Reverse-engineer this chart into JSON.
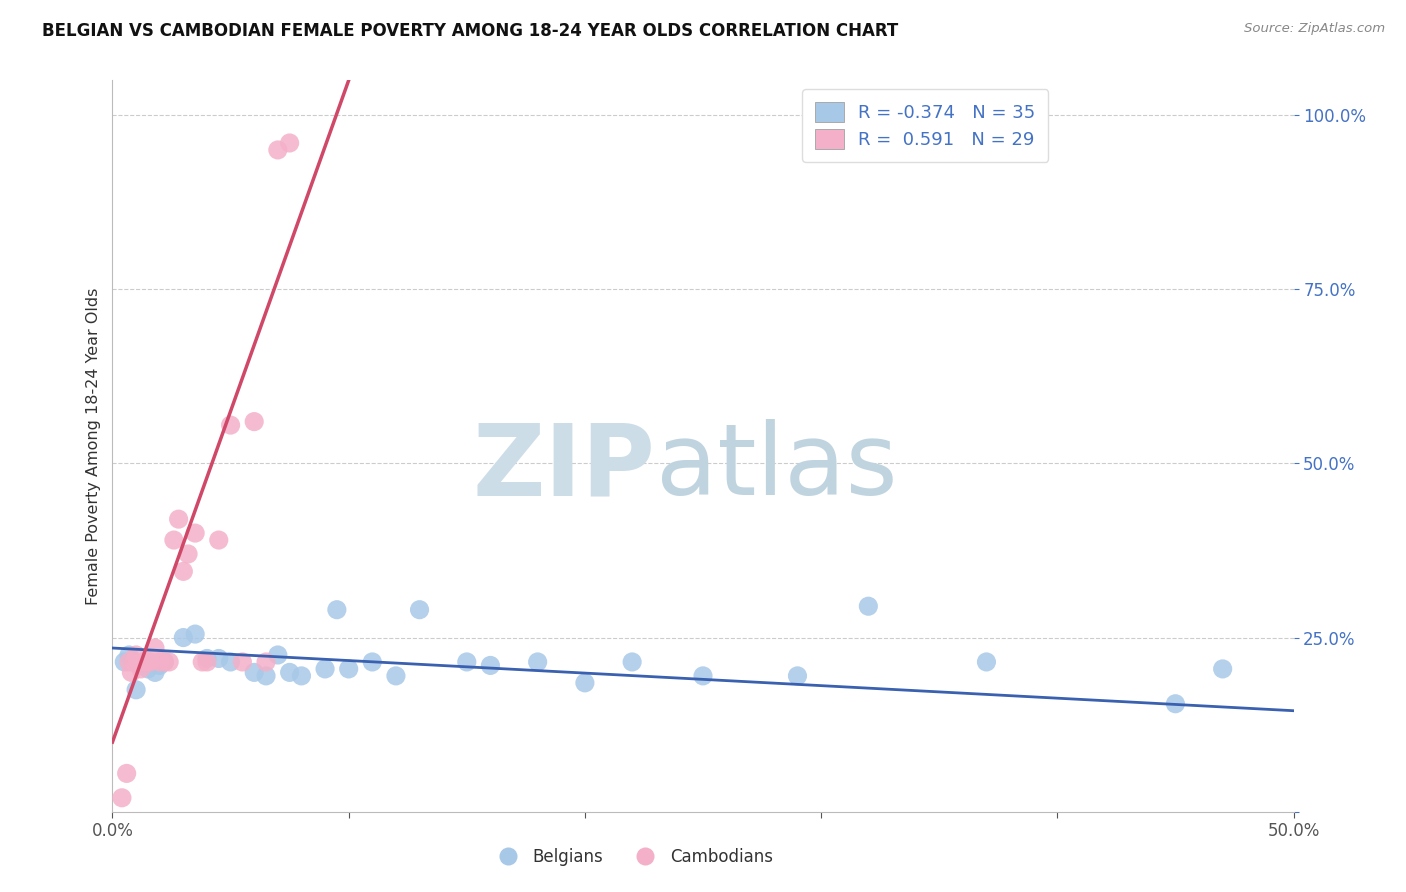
{
  "title": "BELGIAN VS CAMBODIAN FEMALE POVERTY AMONG 18-24 YEAR OLDS CORRELATION CHART",
  "source": "Source: ZipAtlas.com",
  "ylabel": "Female Poverty Among 18-24 Year Olds",
  "xlim": [
    0.0,
    0.5
  ],
  "ylim": [
    0.0,
    1.05
  ],
  "xticks": [
    0.0,
    0.1,
    0.2,
    0.3,
    0.4,
    0.5
  ],
  "xtick_labels": [
    "0.0%",
    "",
    "",
    "",
    "",
    "50.0%"
  ],
  "yticks": [
    0.0,
    0.25,
    0.5,
    0.75,
    1.0
  ],
  "ytick_labels": [
    "",
    "25.0%",
    "50.0%",
    "75.0%",
    "100.0%"
  ],
  "belgian_r": -0.374,
  "belgian_n": 35,
  "cambodian_r": 0.591,
  "cambodian_n": 29,
  "belgian_color": "#a8c8e8",
  "cambodian_color": "#f4b0c8",
  "belgian_line_color": "#3a60b0",
  "cambodian_line_color": "#d04868",
  "right_tick_color": "#4472c4",
  "watermark_zip_color": "#ccdde8",
  "watermark_atlas_color": "#c0d4e0",
  "belgian_x": [
    0.005,
    0.007,
    0.01,
    0.013,
    0.015,
    0.018,
    0.02,
    0.022,
    0.03,
    0.035,
    0.04,
    0.045,
    0.05,
    0.06,
    0.065,
    0.07,
    0.075,
    0.08,
    0.09,
    0.095,
    0.1,
    0.11,
    0.12,
    0.13,
    0.15,
    0.16,
    0.18,
    0.2,
    0.22,
    0.25,
    0.29,
    0.32,
    0.37,
    0.45,
    0.47
  ],
  "belgian_y": [
    0.215,
    0.225,
    0.175,
    0.21,
    0.205,
    0.2,
    0.21,
    0.215,
    0.25,
    0.255,
    0.22,
    0.22,
    0.215,
    0.2,
    0.195,
    0.225,
    0.2,
    0.195,
    0.205,
    0.29,
    0.205,
    0.215,
    0.195,
    0.29,
    0.215,
    0.21,
    0.215,
    0.185,
    0.215,
    0.195,
    0.195,
    0.295,
    0.215,
    0.155,
    0.205
  ],
  "cambodian_x": [
    0.004,
    0.006,
    0.007,
    0.008,
    0.009,
    0.01,
    0.012,
    0.013,
    0.014,
    0.015,
    0.016,
    0.018,
    0.02,
    0.022,
    0.024,
    0.026,
    0.028,
    0.03,
    0.032,
    0.035,
    0.038,
    0.04,
    0.045,
    0.05,
    0.055,
    0.06,
    0.065,
    0.07,
    0.075
  ],
  "cambodian_y": [
    0.02,
    0.055,
    0.215,
    0.2,
    0.215,
    0.225,
    0.205,
    0.215,
    0.215,
    0.215,
    0.215,
    0.235,
    0.215,
    0.215,
    0.215,
    0.39,
    0.42,
    0.345,
    0.37,
    0.4,
    0.215,
    0.215,
    0.39,
    0.555,
    0.215,
    0.56,
    0.215,
    0.95,
    0.96
  ],
  "cam_line_x": [
    0.0,
    0.115
  ],
  "cam_line_y_intercept": 0.1,
  "cam_line_slope": 9.5,
  "bel_line_x": [
    0.0,
    0.5
  ],
  "bel_line_y": [
    0.235,
    0.145
  ]
}
